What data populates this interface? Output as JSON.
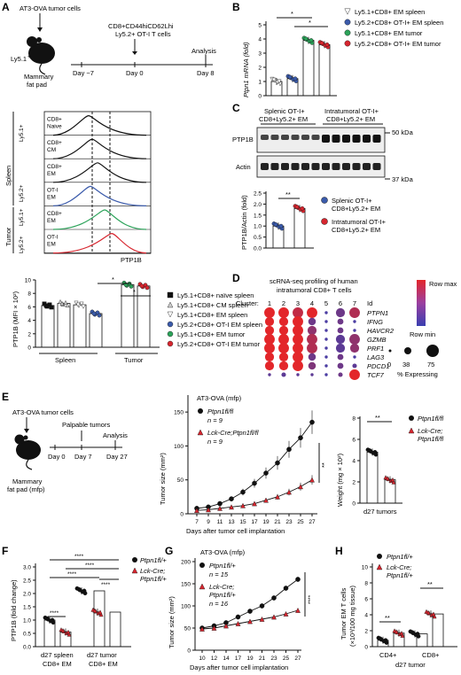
{
  "figure": {
    "panel_A": {
      "letter": "A",
      "schematic": {
        "cells": "AT3-OVA tumor cells",
        "host": "Ly5.1",
        "host_sup": "+",
        "site_l1": "Mammary",
        "site_l2": "fat pad",
        "transfer": "CD8+CD44hiCD62Lhi",
        "transfer_l2": "Ly5.2+ OT-I T cells",
        "analysis": "Analysis",
        "days": [
          "Day −7",
          "Day 0",
          "Day 8"
        ]
      },
      "histogram": {
        "groups": [
          "Spleen",
          "Tumor"
        ],
        "subgroups": [
          "Ly5.1+",
          "Ly5.2+",
          "Ly5.1+",
          "Ly5.2+"
        ],
        "rows": [
          {
            "l1": "CD8+",
            "l2": "Naive",
            "color": "#111111"
          },
          {
            "l1": "CD8+",
            "l2": "CM",
            "color": "#111111"
          },
          {
            "l1": "CD8+",
            "l2": "EM",
            "color": "#111111"
          },
          {
            "l1": "OT-I",
            "l2": "EM",
            "color": "#3b5bab"
          },
          {
            "l1": "CD8+",
            "l2": "EM",
            "color": "#2ca35a"
          },
          {
            "l1": "OT-I",
            "l2": "EM",
            "color": "#d7262f"
          }
        ],
        "xlabel": "PTP1B"
      },
      "bar_chart": {
        "ylabel": "PTP1B (MFI × 10²)",
        "yticks": [
          "0",
          "2",
          "4",
          "6",
          "8",
          "10"
        ],
        "groups": [
          "Spleen",
          "Tumor"
        ],
        "sig": [
          "*",
          "*"
        ],
        "legend": [
          "Ly5.1+CD8+ naïve spleen",
          "Ly5.1+CD8+ CM spleen",
          "Ly5.1+CD8+ EM spleen",
          "Ly5.2+CD8+ OT-I EM spleen",
          "Ly5.1+CD8+ EM tumor",
          "Ly5.2+CD8+ OT-I EM tumor"
        ]
      }
    },
    "panel_B": {
      "letter": "B",
      "ylabel": "Ptpn1 mRNA (fold)",
      "yticks": [
        "0",
        "1",
        "2",
        "3",
        "4",
        "5"
      ],
      "sig": [
        "*",
        "*"
      ],
      "legend": [
        "Ly5.1+CD8+ EM spleen",
        "Ly5.2+CD8+ OT-I+ EM spleen",
        "Ly5.1+CD8+ EM tumor",
        "Ly5.2+CD8+ OT-I+ EM tumor"
      ]
    },
    "panel_C": {
      "letter": "C",
      "headers": [
        "Splenic OT-I+",
        "CD8+Ly5.2+ EM",
        "Intratumoral OT-I+",
        "CD8+Ly5.2+ EM"
      ],
      "bands": [
        "PTP1B",
        "Actin"
      ],
      "markers": [
        "50 kDa",
        "37 kDa"
      ],
      "ylabel": "PTP1B/Actin (fold)",
      "yticks": [
        "0.0",
        "0.5",
        "1.0",
        "1.5",
        "2.0",
        "2.5"
      ],
      "sig": "**",
      "legend": [
        "Splenic OT-I+",
        "CD8+Ly5.2+ EM",
        "Intratumoral OT-I+",
        "CD8+Ly5.2+ EM"
      ]
    },
    "panel_D": {
      "letter": "D",
      "title_l1": "scRNA-seq profiling of human",
      "title_l2": "intratumoral CD8+ T cells",
      "cluster_label": "Cluster:",
      "clusters": [
        "1",
        "2",
        "3",
        "4",
        "5",
        "6",
        "7"
      ],
      "id_label": "Id",
      "genes": [
        "PTPN1",
        "IFNG",
        "HAVCR2",
        "GZMB",
        "PRF1",
        "LAG3",
        "PDCD1",
        "TCF7"
      ],
      "row_max": "Row max",
      "row_min": "Row min",
      "size_values": [
        "0",
        "38",
        "75"
      ],
      "size_label": "% Expressing"
    },
    "panel_E": {
      "letter": "E",
      "schematic": {
        "cells": "AT3-OVA tumor cells",
        "palpable": "Palpable tumors",
        "analysis": "Analysis",
        "days": [
          "Day 0",
          "Day 7",
          "Day 27"
        ],
        "site_l1": "Mammary",
        "site_l2": "fat pad (mfp)"
      },
      "growth": {
        "title": "AT3-OVA (mfp)",
        "series_1": "Ptpn1fl/fl",
        "n1": "n = 9",
        "series_2": "Lck-Cre;Ptpn1fl/fl",
        "n2": "n = 9",
        "ylabel": "Tumor size (mm²)",
        "xlabel": "Days after tumor cell implantation",
        "yticks": [
          "0",
          "50",
          "100",
          "150"
        ],
        "xticks": [
          "7",
          "9",
          "11",
          "13",
          "15",
          "17",
          "19",
          "21",
          "23",
          "25",
          "27"
        ],
        "sig": "**"
      },
      "weight": {
        "ylabel": "Weight (mg × 10²)",
        "yticks": [
          "0",
          "2",
          "4",
          "6",
          "8"
        ],
        "xlabel": "d27 tumors",
        "sig": "**",
        "legend": [
          "Ptpn1fl/fl",
          "Lck-Cre;",
          "Ptpn1fl/fl"
        ]
      }
    },
    "panel_F": {
      "letter": "F",
      "ylabel": "PTP1B (fold change)",
      "yticks": [
        "0.0",
        "0.5",
        "1.0",
        "1.5",
        "2.0",
        "2.5",
        "3.0"
      ],
      "xlabels": [
        "d27 spleen",
        "CD8+ EM",
        "d27 tumor",
        "CD8+ EM"
      ],
      "sig": [
        "****",
        "****",
        "****",
        "****",
        "****"
      ],
      "legend": [
        "Ptpn1fl/+",
        "Lck-Cre;",
        "Ptpn1fl/+"
      ]
    },
    "panel_G": {
      "letter": "G",
      "title": "AT3-OVA (mfp)",
      "series_1": "Ptpn1fl/+",
      "n1": "n = 15",
      "series_2": "Lck-Cre;",
      "series_2b": "Ptpn1fl/+",
      "n2": "n = 16",
      "ylabel": "Tumor size (mm²)",
      "xlabel": "Days after tumor cell implantation",
      "yticks": [
        "0",
        "50",
        "100",
        "150",
        "200"
      ],
      "xticks": [
        "10",
        "12",
        "14",
        "17",
        "19",
        "21",
        "23",
        "25",
        "27"
      ],
      "sig": "****"
    },
    "panel_H": {
      "letter": "H",
      "ylabel_l1": "Tumor EM T cells",
      "ylabel_l2": "(×10³/100 mg tissue)",
      "yticks": [
        "0",
        "2",
        "4",
        "6",
        "8",
        "10"
      ],
      "xlabels": [
        "CD4+",
        "CD8+"
      ],
      "xlabel": "d27 tumor",
      "sig": [
        "**",
        "**"
      ],
      "legend": [
        "Ptpn1fl/+",
        "Lck-Cre;",
        "Ptpn1fl/+"
      ]
    }
  },
  "chart_data": [
    {
      "type": "bar",
      "panel": "A",
      "title": "",
      "categories": [
        "Ly5.1+CD8+ naïve spleen",
        "Ly5.1+CD8+ CM spleen",
        "Ly5.1+CD8+ EM spleen",
        "Ly5.2+CD8+ OT-I EM spleen",
        "Ly5.1+CD8+ EM tumor",
        "Ly5.2+CD8+ OT-I EM tumor"
      ],
      "values": [
        6.2,
        6.5,
        6.3,
        5.0,
        9.3,
        9.1
      ],
      "ylabel": "PTP1B (MFI × 10²)",
      "ylim": [
        0,
        10
      ]
    },
    {
      "type": "bar",
      "panel": "B",
      "title": "",
      "categories": [
        "Ly5.1+CD8+ EM spleen",
        "Ly5.2+CD8+ OT-I+ EM spleen",
        "Ly5.1+CD8+ EM tumor",
        "Ly5.2+CD8+ OT-I+ EM tumor"
      ],
      "values": [
        1.0,
        1.2,
        3.9,
        3.6
      ],
      "ylabel": "Ptpn1 mRNA (fold)",
      "ylim": [
        0,
        5
      ]
    },
    {
      "type": "bar",
      "panel": "C",
      "title": "",
      "categories": [
        "Splenic OT-I+ CD8+Ly5.2+ EM",
        "Intratumoral OT-I+ CD8+Ly5.2+ EM"
      ],
      "values": [
        1.0,
        1.8
      ],
      "ylabel": "PTP1B/Actin (fold)",
      "ylim": [
        0,
        2.5
      ]
    },
    {
      "type": "line",
      "panel": "E",
      "title": "AT3-OVA (mfp)",
      "x": [
        7,
        9,
        11,
        13,
        15,
        17,
        19,
        21,
        23,
        25,
        27
      ],
      "series": [
        {
          "name": "Ptpn1fl/fl",
          "values": [
            8,
            10,
            15,
            22,
            32,
            45,
            60,
            75,
            95,
            112,
            135
          ]
        },
        {
          "name": "Lck-Cre;Ptpn1fl/fl",
          "values": [
            5,
            6,
            8,
            10,
            12,
            15,
            20,
            25,
            32,
            40,
            50
          ]
        }
      ],
      "xlabel": "Days after tumor cell implantation",
      "ylabel": "Tumor size (mm²)",
      "ylim": [
        0,
        175
      ]
    },
    {
      "type": "bar",
      "panel": "E",
      "title": "",
      "categories": [
        "Ptpn1fl/fl",
        "Lck-Cre;Ptpn1fl/fl"
      ],
      "values": [
        4.8,
        2.2
      ],
      "ylabel": "Weight (mg × 10²)",
      "ylim": [
        0,
        8
      ]
    },
    {
      "type": "bar",
      "panel": "F",
      "title": "",
      "categories": [
        "d27 spleen CD8+ EM Ptpn1fl/+",
        "d27 spleen CD8+ EM Lck-Cre;Ptpn1fl/+",
        "d27 tumor CD8+ EM Ptpn1fl/+",
        "d27 tumor CD8+ EM Lck-Cre;Ptpn1fl/+"
      ],
      "values": [
        1.0,
        0.55,
        2.1,
        1.3
      ],
      "ylabel": "PTP1B (fold change)",
      "ylim": [
        0,
        3
      ]
    },
    {
      "type": "line",
      "panel": "G",
      "title": "AT3-OVA (mfp)",
      "x": [
        10,
        12,
        14,
        17,
        19,
        21,
        23,
        25,
        27
      ],
      "series": [
        {
          "name": "Ptpn1fl/+",
          "values": [
            50,
            55,
            62,
            75,
            88,
            100,
            118,
            140,
            160
          ]
        },
        {
          "name": "Lck-Cre;Ptpn1fl/+",
          "values": [
            48,
            50,
            55,
            60,
            65,
            70,
            75,
            82,
            90
          ]
        }
      ],
      "xlabel": "Days after tumor cell implantation",
      "ylabel": "Tumor size (mm²)",
      "ylim": [
        0,
        200
      ]
    },
    {
      "type": "bar",
      "panel": "H",
      "title": "",
      "categories": [
        "CD4+ Ptpn1fl/+",
        "CD4+ Lck-Cre;Ptpn1fl/+",
        "CD8+ Ptpn1fl/+",
        "CD8+ Lck-Cre;Ptpn1fl/+"
      ],
      "values": [
        0.8,
        1.7,
        1.6,
        4.1
      ],
      "ylabel": "Tumor EM T cells (×10³/100 mg tissue)",
      "ylim": [
        0,
        10
      ]
    }
  ]
}
